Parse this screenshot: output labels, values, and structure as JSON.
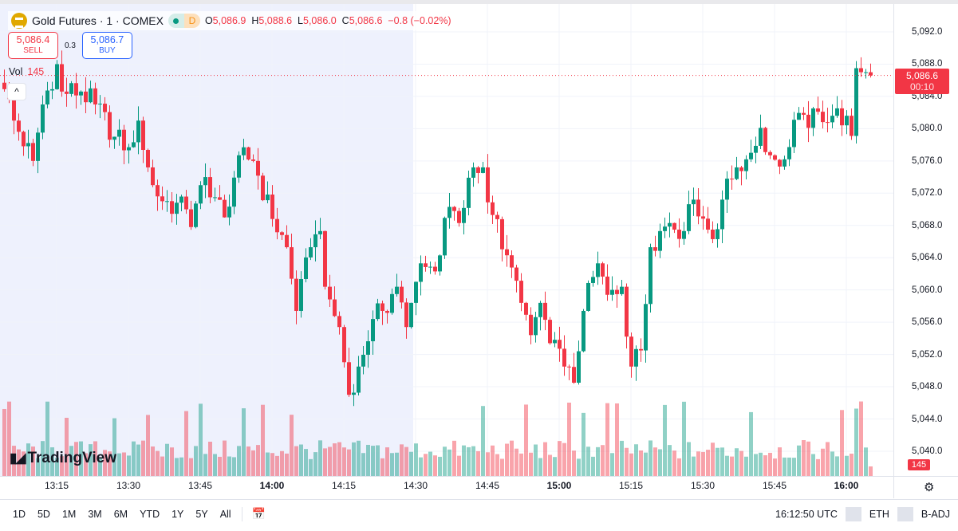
{
  "header": {
    "symbol": "Gold Futures · 1 · COMEX",
    "market_dot": "open",
    "d_badge": "D",
    "o_label": "O",
    "o": "5,086.9",
    "h_label": "H",
    "h": "5,088.6",
    "l_label": "L",
    "l": "5,086.0",
    "c_label": "C",
    "c": "5,086.6",
    "change": "−0.8 (−0.02%)"
  },
  "trade": {
    "sell_price": "5,086.4",
    "sell_label": "SELL",
    "spread": "0.3",
    "buy_price": "5,086.7",
    "buy_label": "BUY"
  },
  "volume_legend": {
    "label": "Vol",
    "value": "145"
  },
  "last_price": {
    "price": "5,086.6",
    "countdown": "00:10"
  },
  "last_volume": "145",
  "brand": "TradingView",
  "bottom": {
    "ranges": [
      "1D",
      "5D",
      "1M",
      "3M",
      "6M",
      "YTD",
      "1Y",
      "5Y",
      "All"
    ],
    "clock": "16:12:50 UTC",
    "session": "ETH",
    "adjust": "B-ADJ"
  },
  "colors": {
    "up": "#089981",
    "down": "#f23645",
    "session_shade": "#eef1fd",
    "buy": "#2962ff"
  },
  "chart_data": {
    "type": "candlestick",
    "title": "Gold Futures · 1 · COMEX",
    "interval_minutes": 1,
    "start_time": "13:04",
    "ylim": [
      5036,
      5094
    ],
    "y_ticks": [
      "5,092.0",
      "5,088.0",
      "5,084.0",
      "5,080.0",
      "5,076.0",
      "5,072.0",
      "5,068.0",
      "5,064.0",
      "5,060.0",
      "5,056.0",
      "5,052.0",
      "5,048.0",
      "5,044.0",
      "5,040.0"
    ],
    "x_ticks": [
      {
        "label": "13:15",
        "bold": false
      },
      {
        "label": "13:30",
        "bold": false
      },
      {
        "label": "13:45",
        "bold": false
      },
      {
        "label": "14:00",
        "bold": true
      },
      {
        "label": "14:15",
        "bold": false
      },
      {
        "label": "14:30",
        "bold": false
      },
      {
        "label": "14:45",
        "bold": false
      },
      {
        "label": "15:00",
        "bold": true
      },
      {
        "label": "15:15",
        "bold": false
      },
      {
        "label": "15:30",
        "bold": false
      },
      {
        "label": "15:45",
        "bold": false
      },
      {
        "label": "16:00",
        "bold": true
      }
    ],
    "session_shade_end": "14:30",
    "close_trace": [
      [
        "13:04",
        5084.9
      ],
      [
        "13:06",
        5081.0
      ],
      [
        "13:10",
        5076.0
      ],
      [
        "13:12",
        5083.0
      ],
      [
        "13:15",
        5088.0
      ],
      [
        "13:16",
        5084.6
      ],
      [
        "13:20",
        5084.6
      ],
      [
        "13:23",
        5083.0
      ],
      [
        "13:27",
        5079.0
      ],
      [
        "13:30",
        5077.7
      ],
      [
        "13:32",
        5081.0
      ],
      [
        "13:35",
        5073.0
      ],
      [
        "13:37",
        5071.0
      ],
      [
        "13:42",
        5070.0
      ],
      [
        "13:43",
        5067.8
      ],
      [
        "13:46",
        5074.0
      ],
      [
        "13:50",
        5069.0
      ],
      [
        "13:53",
        5076.7
      ],
      [
        "13:56",
        5076.0
      ],
      [
        "14:00",
        5068.8
      ],
      [
        "14:03",
        5065.3
      ],
      [
        "14:05",
        5057.4
      ],
      [
        "14:08",
        5065.3
      ],
      [
        "14:10",
        5067.3
      ],
      [
        "14:11",
        5060.4
      ],
      [
        "14:14",
        5055.4
      ],
      [
        "14:16",
        5047.0
      ],
      [
        "14:18",
        5050.5
      ],
      [
        "14:21",
        5056.4
      ],
      [
        "14:23",
        5057.4
      ],
      [
        "14:26",
        5060.4
      ],
      [
        "14:28",
        5055.4
      ],
      [
        "14:31",
        5063.3
      ],
      [
        "14:34",
        5062.3
      ],
      [
        "14:37",
        5070.3
      ],
      [
        "14:39",
        5068.3
      ],
      [
        "14:42",
        5075.2
      ],
      [
        "14:44",
        5075.2
      ],
      [
        "14:46",
        5069.3
      ],
      [
        "14:49",
        5064.3
      ],
      [
        "14:52",
        5058.4
      ],
      [
        "14:54",
        5054.4
      ],
      [
        "14:56",
        5058.4
      ],
      [
        "14:58",
        5053.4
      ],
      [
        "15:01",
        5050.5
      ],
      [
        "15:03",
        5048.5
      ],
      [
        "15:05",
        5057.4
      ],
      [
        "15:08",
        5063.3
      ],
      [
        "15:10",
        5059.4
      ],
      [
        "15:13",
        5060.4
      ],
      [
        "15:15",
        5050.5
      ],
      [
        "15:17",
        5052.5
      ],
      [
        "15:19",
        5065.3
      ],
      [
        "15:21",
        5067.3
      ],
      [
        "15:23",
        5068.3
      ],
      [
        "15:26",
        5067.3
      ],
      [
        "15:28",
        5071.2
      ],
      [
        "15:32",
        5066.3
      ],
      [
        "15:34",
        5071.2
      ],
      [
        "15:37",
        5075.2
      ],
      [
        "15:39",
        5076.2
      ],
      [
        "15:42",
        5080.1
      ],
      [
        "15:44",
        5076.7
      ],
      [
        "15:47",
        5076.2
      ],
      [
        "15:49",
        5081.1
      ],
      [
        "15:52",
        5080.1
      ],
      [
        "15:54",
        5082.1
      ],
      [
        "15:57",
        5081.6
      ],
      [
        "16:00",
        5081.6
      ],
      [
        "16:01",
        5079.1
      ],
      [
        "16:02",
        5087.5
      ],
      [
        "16:03",
        5087.0
      ],
      [
        "16:04",
        5087.0
      ],
      [
        "16:05",
        5086.6
      ]
    ],
    "volume_last": 145
  }
}
